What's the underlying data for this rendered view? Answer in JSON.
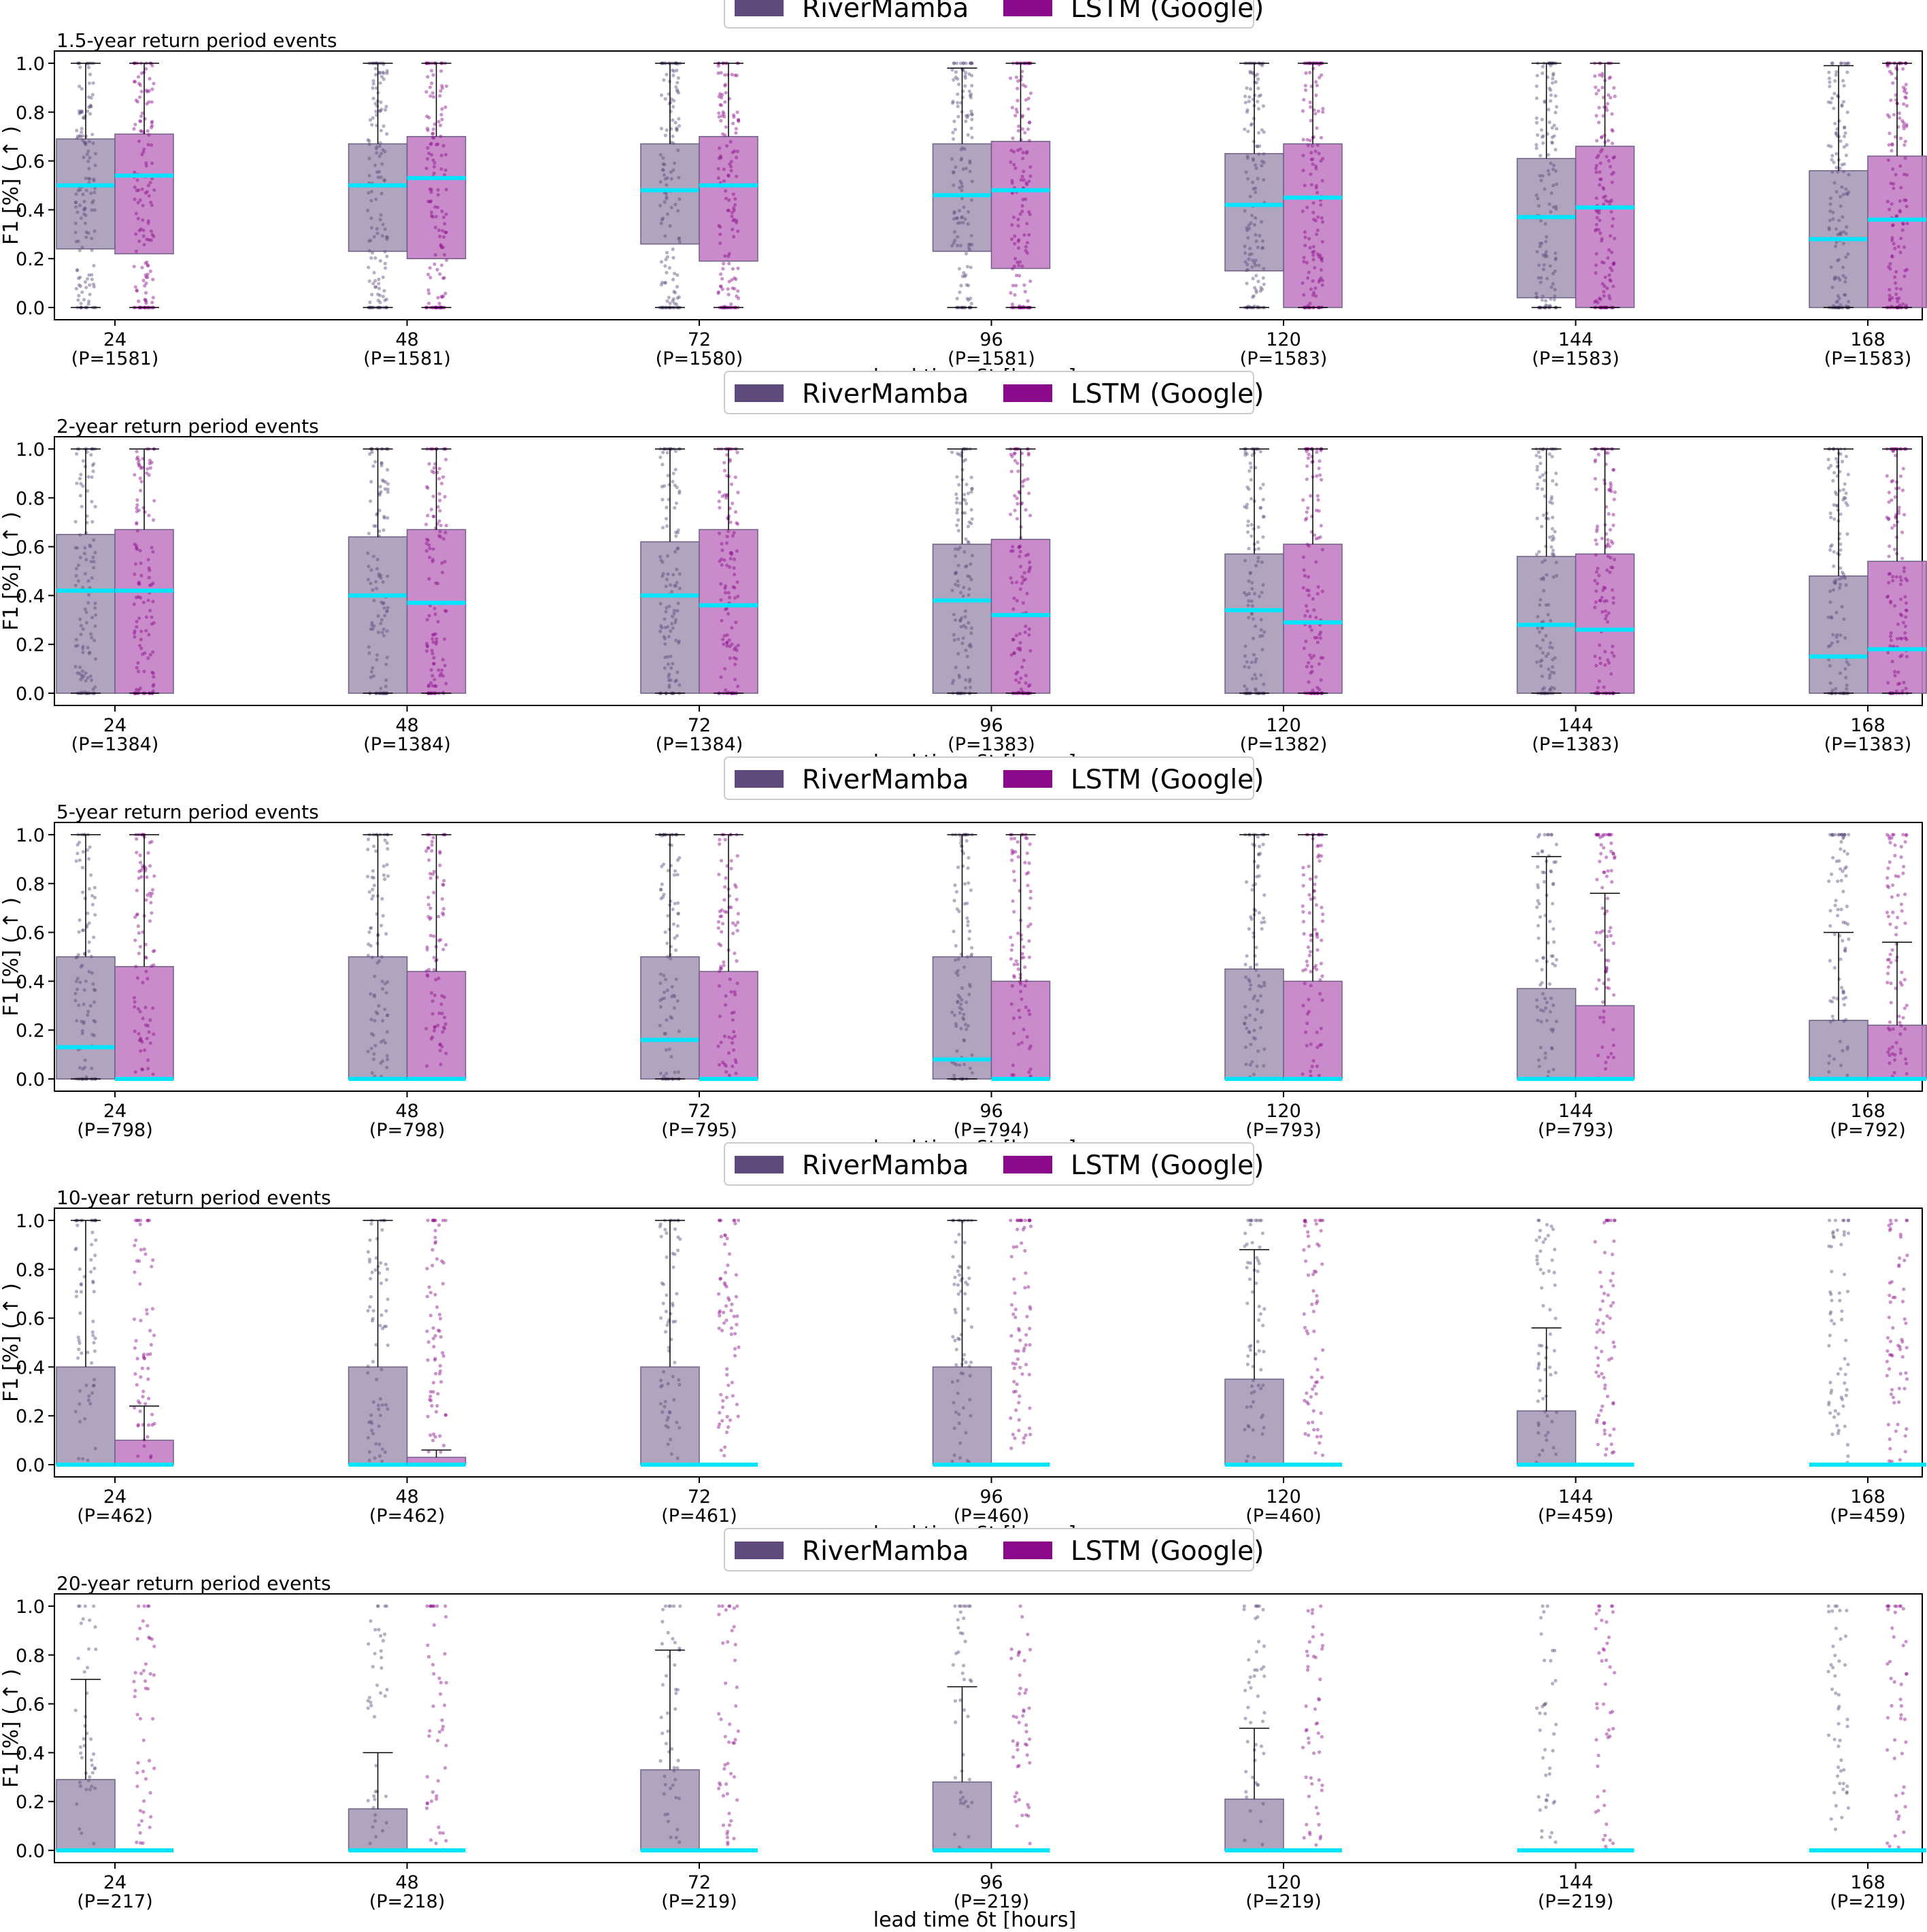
{
  "legend": {
    "entries": [
      {
        "name": "RiverMamba",
        "color": "#5e4b7c"
      },
      {
        "name": "LSTM (Google)",
        "color": "#8b0a8b"
      }
    ]
  },
  "colors": {
    "rivermamba_box": "#a69bb8",
    "lstm_box": "#c47ec4",
    "median": "#00e5ff",
    "axis": "#000000"
  },
  "chart_data": [
    {
      "type": "bar",
      "title": "1.5-year return period events",
      "xlabel": "lead time δt [hours]",
      "ylabel": "F1 [%] ( ↑ )",
      "ylim": [
        -0.05,
        1.05
      ],
      "yticks": [
        "0.0",
        "0.2",
        "0.4",
        "0.6",
        "0.8",
        "1.0"
      ],
      "categories": [
        "24",
        "48",
        "72",
        "96",
        "120",
        "144",
        "168"
      ],
      "counts": [
        "(P=1581)",
        "(P=1581)",
        "(P=1580)",
        "(P=1581)",
        "(P=1583)",
        "(P=1583)",
        "(P=1583)"
      ],
      "series": [
        {
          "name": "RiverMamba",
          "q1": [
            0.24,
            0.23,
            0.26,
            0.23,
            0.15,
            0.04,
            0.0
          ],
          "q3": [
            0.69,
            0.67,
            0.67,
            0.67,
            0.63,
            0.61,
            0.56
          ],
          "median": [
            0.5,
            0.5,
            0.48,
            0.46,
            0.42,
            0.37,
            0.28
          ],
          "whisker_low": [
            0.0,
            0.0,
            0.0,
            0.0,
            0.0,
            0.0,
            0.0
          ],
          "whisker_high": [
            1.0,
            1.0,
            1.0,
            0.98,
            1.0,
            1.0,
            0.99
          ]
        },
        {
          "name": "LSTM (Google)",
          "q1": [
            0.22,
            0.2,
            0.19,
            0.16,
            0.0,
            0.0,
            0.0
          ],
          "q3": [
            0.71,
            0.7,
            0.7,
            0.68,
            0.67,
            0.66,
            0.62
          ],
          "median": [
            0.54,
            0.53,
            0.5,
            0.48,
            0.45,
            0.41,
            0.36
          ],
          "whisker_low": [
            0.0,
            0.0,
            0.0,
            0.0,
            0.0,
            0.0,
            0.0
          ],
          "whisker_high": [
            1.0,
            1.0,
            1.0,
            1.0,
            1.0,
            1.0,
            1.0
          ]
        }
      ]
    },
    {
      "type": "bar",
      "title": "2-year return period events",
      "xlabel": "lead time δt [hours]",
      "ylabel": "F1 [%] ( ↑ )",
      "ylim": [
        -0.05,
        1.05
      ],
      "yticks": [
        "0.0",
        "0.2",
        "0.4",
        "0.6",
        "0.8",
        "1.0"
      ],
      "categories": [
        "24",
        "48",
        "72",
        "96",
        "120",
        "144",
        "168"
      ],
      "counts": [
        "(P=1384)",
        "(P=1384)",
        "(P=1384)",
        "(P=1383)",
        "(P=1382)",
        "(P=1383)",
        "(P=1383)"
      ],
      "series": [
        {
          "name": "RiverMamba",
          "q1": [
            0.0,
            0.0,
            0.0,
            0.0,
            0.0,
            0.0,
            0.0
          ],
          "q3": [
            0.65,
            0.64,
            0.62,
            0.61,
            0.57,
            0.56,
            0.48
          ],
          "median": [
            0.42,
            0.4,
            0.4,
            0.38,
            0.34,
            0.28,
            0.15
          ],
          "whisker_low": [
            0.0,
            0.0,
            0.0,
            0.0,
            0.0,
            0.0,
            0.0
          ],
          "whisker_high": [
            1.0,
            1.0,
            1.0,
            1.0,
            1.0,
            1.0,
            1.0
          ]
        },
        {
          "name": "LSTM (Google)",
          "q1": [
            0.0,
            0.0,
            0.0,
            0.0,
            0.0,
            0.0,
            0.0
          ],
          "q3": [
            0.67,
            0.67,
            0.67,
            0.63,
            0.61,
            0.57,
            0.54
          ],
          "median": [
            0.42,
            0.37,
            0.36,
            0.32,
            0.29,
            0.26,
            0.18
          ],
          "whisker_low": [
            0.0,
            0.0,
            0.0,
            0.0,
            0.0,
            0.0,
            0.0
          ],
          "whisker_high": [
            1.0,
            1.0,
            1.0,
            1.0,
            1.0,
            1.0,
            1.0
          ]
        }
      ]
    },
    {
      "type": "bar",
      "title": "5-year return period events",
      "xlabel": "lead time δt [hours]",
      "ylabel": "F1 [%] ( ↑ )",
      "ylim": [
        -0.05,
        1.05
      ],
      "yticks": [
        "0.0",
        "0.2",
        "0.4",
        "0.6",
        "0.8",
        "1.0"
      ],
      "categories": [
        "24",
        "48",
        "72",
        "96",
        "120",
        "144",
        "168"
      ],
      "counts": [
        "(P=798)",
        "(P=798)",
        "(P=795)",
        "(P=794)",
        "(P=793)",
        "(P=793)",
        "(P=792)"
      ],
      "series": [
        {
          "name": "RiverMamba",
          "q1": [
            0.0,
            0.0,
            0.0,
            0.0,
            0.0,
            0.0,
            0.0
          ],
          "q3": [
            0.5,
            0.5,
            0.5,
            0.5,
            0.45,
            0.37,
            0.24
          ],
          "median": [
            0.13,
            0.0,
            0.16,
            0.08,
            0.0,
            0.0,
            0.0
          ],
          "whisker_low": [
            0.0,
            0.0,
            0.0,
            0.0,
            0.0,
            0.0,
            0.0
          ],
          "whisker_high": [
            1.0,
            1.0,
            1.0,
            1.0,
            1.0,
            0.91,
            0.6
          ]
        },
        {
          "name": "LSTM (Google)",
          "q1": [
            0.0,
            0.0,
            0.0,
            0.0,
            0.0,
            0.0,
            0.0
          ],
          "q3": [
            0.46,
            0.44,
            0.44,
            0.4,
            0.4,
            0.3,
            0.22
          ],
          "median": [
            0.0,
            0.0,
            0.0,
            0.0,
            0.0,
            0.0,
            0.0
          ],
          "whisker_low": [
            0.0,
            0.0,
            0.0,
            0.0,
            0.0,
            0.0,
            0.0
          ],
          "whisker_high": [
            1.0,
            1.0,
            1.0,
            1.0,
            1.0,
            0.76,
            0.56
          ]
        }
      ]
    },
    {
      "type": "bar",
      "title": "10-year return period events",
      "xlabel": "lead time δt [hours]",
      "ylabel": "F1 [%] ( ↑ )",
      "ylim": [
        -0.05,
        1.05
      ],
      "yticks": [
        "0.0",
        "0.2",
        "0.4",
        "0.6",
        "0.8",
        "1.0"
      ],
      "categories": [
        "24",
        "48",
        "72",
        "96",
        "120",
        "144",
        "168"
      ],
      "counts": [
        "(P=462)",
        "(P=462)",
        "(P=461)",
        "(P=460)",
        "(P=460)",
        "(P=459)",
        "(P=459)"
      ],
      "series": [
        {
          "name": "RiverMamba",
          "q1": [
            0.0,
            0.0,
            0.0,
            0.0,
            0.0,
            0.0,
            0.0
          ],
          "q3": [
            0.4,
            0.4,
            0.4,
            0.4,
            0.35,
            0.22,
            0.0
          ],
          "median": [
            0.0,
            0.0,
            0.0,
            0.0,
            0.0,
            0.0,
            0.0
          ],
          "whisker_low": [
            0.0,
            0.0,
            0.0,
            0.0,
            0.0,
            0.0,
            0.0
          ],
          "whisker_high": [
            1.0,
            1.0,
            1.0,
            1.0,
            0.88,
            0.56,
            0.0
          ]
        },
        {
          "name": "LSTM (Google)",
          "q1": [
            0.0,
            0.0,
            0.0,
            0.0,
            0.0,
            0.0,
            0.0
          ],
          "q3": [
            0.1,
            0.03,
            0.0,
            0.0,
            0.0,
            0.0,
            0.0
          ],
          "median": [
            0.0,
            0.0,
            0.0,
            0.0,
            0.0,
            0.0,
            0.0
          ],
          "whisker_low": [
            0.0,
            0.0,
            0.0,
            0.0,
            0.0,
            0.0,
            0.0
          ],
          "whisker_high": [
            0.24,
            0.06,
            0.0,
            0.0,
            0.0,
            0.0,
            0.0
          ]
        }
      ]
    },
    {
      "type": "bar",
      "title": "20-year return period events",
      "xlabel": "lead time δt [hours]",
      "ylabel": "F1 [%] ( ↑ )",
      "ylim": [
        -0.05,
        1.05
      ],
      "yticks": [
        "0.0",
        "0.2",
        "0.4",
        "0.6",
        "0.8",
        "1.0"
      ],
      "categories": [
        "24",
        "48",
        "72",
        "96",
        "120",
        "144",
        "168"
      ],
      "counts": [
        "(P=217)",
        "(P=218)",
        "(P=219)",
        "(P=219)",
        "(P=219)",
        "(P=219)",
        "(P=219)"
      ],
      "series": [
        {
          "name": "RiverMamba",
          "q1": [
            0.0,
            0.0,
            0.0,
            0.0,
            0.0,
            0.0,
            0.0
          ],
          "q3": [
            0.29,
            0.17,
            0.33,
            0.28,
            0.21,
            0.0,
            0.0
          ],
          "median": [
            0.0,
            0.0,
            0.0,
            0.0,
            0.0,
            0.0,
            0.0
          ],
          "whisker_low": [
            0.0,
            0.0,
            0.0,
            0.0,
            0.0,
            0.0,
            0.0
          ],
          "whisker_high": [
            0.7,
            0.4,
            0.82,
            0.67,
            0.5,
            0.0,
            0.0
          ]
        },
        {
          "name": "LSTM (Google)",
          "q1": [
            0.0,
            0.0,
            0.0,
            0.0,
            0.0,
            0.0,
            0.0
          ],
          "q3": [
            0.0,
            0.0,
            0.0,
            0.0,
            0.0,
            0.0,
            0.0
          ],
          "median": [
            0.0,
            0.0,
            0.0,
            0.0,
            0.0,
            0.0,
            0.0
          ],
          "whisker_low": [
            0.0,
            0.0,
            0.0,
            0.0,
            0.0,
            0.0,
            0.0
          ],
          "whisker_high": [
            0.0,
            0.0,
            0.0,
            0.0,
            0.0,
            0.0,
            0.0
          ]
        }
      ]
    }
  ]
}
